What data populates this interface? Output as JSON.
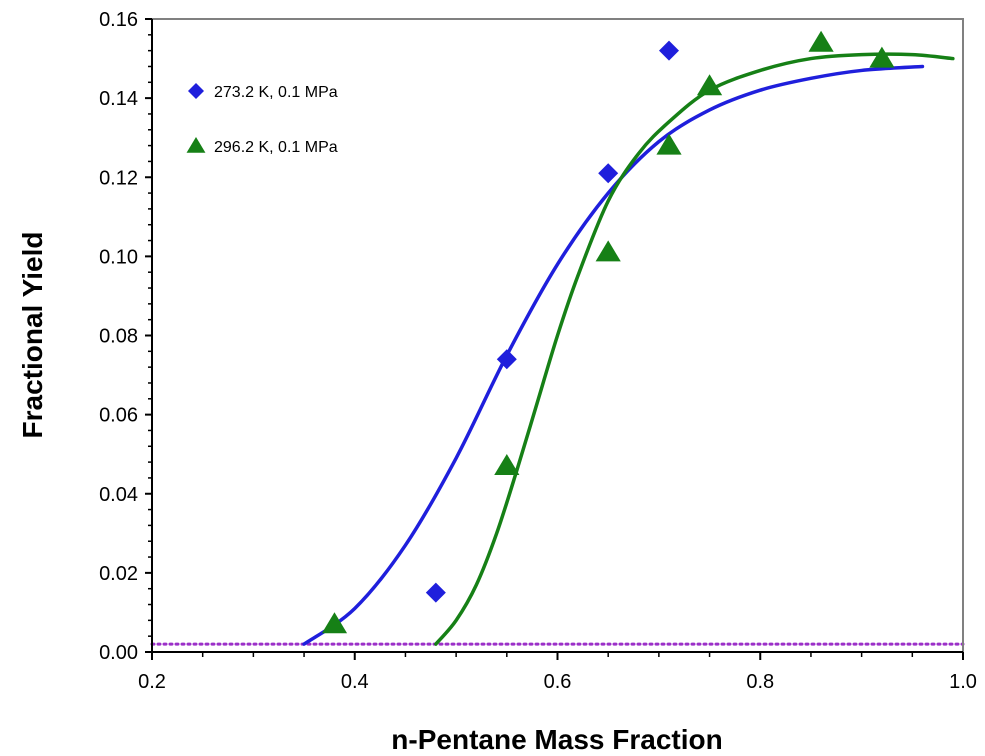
{
  "chart_data": {
    "type": "scatter",
    "xlabel": "n-Pentane Mass Fraction",
    "ylabel": "Fractional Yield",
    "xlim": [
      0.2,
      1.0
    ],
    "ylim": [
      0.0,
      0.16
    ],
    "x_ticks": [
      0.2,
      0.4,
      0.6,
      0.8,
      1.0
    ],
    "x_tick_labels": [
      "0.2",
      "0.4",
      "0.6",
      "0.8",
      "1.0"
    ],
    "y_ticks": [
      0.0,
      0.02,
      0.04,
      0.06,
      0.08,
      0.1,
      0.12,
      0.14,
      0.16
    ],
    "y_tick_labels": [
      "0.00",
      "0.02",
      "0.04",
      "0.06",
      "0.08",
      "0.10",
      "0.12",
      "0.14",
      "0.16"
    ],
    "grid": false,
    "legend_position": "top-left",
    "series": [
      {
        "name": "273.2 K, 0.1 MPa",
        "marker": "diamond",
        "color": "#1f1fdc",
        "points": [
          [
            0.48,
            0.015
          ],
          [
            0.55,
            0.074
          ],
          [
            0.65,
            0.121
          ],
          [
            0.71,
            0.152
          ]
        ],
        "fit_curve": [
          [
            0.35,
            0.002
          ],
          [
            0.4,
            0.011
          ],
          [
            0.45,
            0.027
          ],
          [
            0.5,
            0.049
          ],
          [
            0.55,
            0.075
          ],
          [
            0.6,
            0.098
          ],
          [
            0.65,
            0.116
          ],
          [
            0.7,
            0.129
          ],
          [
            0.75,
            0.137
          ],
          [
            0.8,
            0.142
          ],
          [
            0.85,
            0.145
          ],
          [
            0.9,
            0.147
          ],
          [
            0.96,
            0.148
          ]
        ]
      },
      {
        "name": "296.2 K, 0.1 MPa",
        "marker": "triangle",
        "color": "#168016",
        "points": [
          [
            0.38,
            0.007
          ],
          [
            0.55,
            0.047
          ],
          [
            0.65,
            0.101
          ],
          [
            0.71,
            0.128
          ],
          [
            0.75,
            0.143
          ],
          [
            0.86,
            0.154
          ],
          [
            0.92,
            0.15
          ]
        ],
        "fit_curve": [
          [
            0.48,
            0.002
          ],
          [
            0.5,
            0.008
          ],
          [
            0.52,
            0.017
          ],
          [
            0.54,
            0.03
          ],
          [
            0.56,
            0.046
          ],
          [
            0.58,
            0.063
          ],
          [
            0.6,
            0.08
          ],
          [
            0.62,
            0.095
          ],
          [
            0.65,
            0.114
          ],
          [
            0.68,
            0.126
          ],
          [
            0.71,
            0.134
          ],
          [
            0.75,
            0.142
          ],
          [
            0.8,
            0.147
          ],
          [
            0.85,
            0.15
          ],
          [
            0.9,
            0.151
          ],
          [
            0.95,
            0.151
          ],
          [
            0.99,
            0.15
          ]
        ]
      }
    ],
    "reference_line": {
      "y": 0.002,
      "style": "dotted",
      "color": "#9b30c8"
    }
  }
}
